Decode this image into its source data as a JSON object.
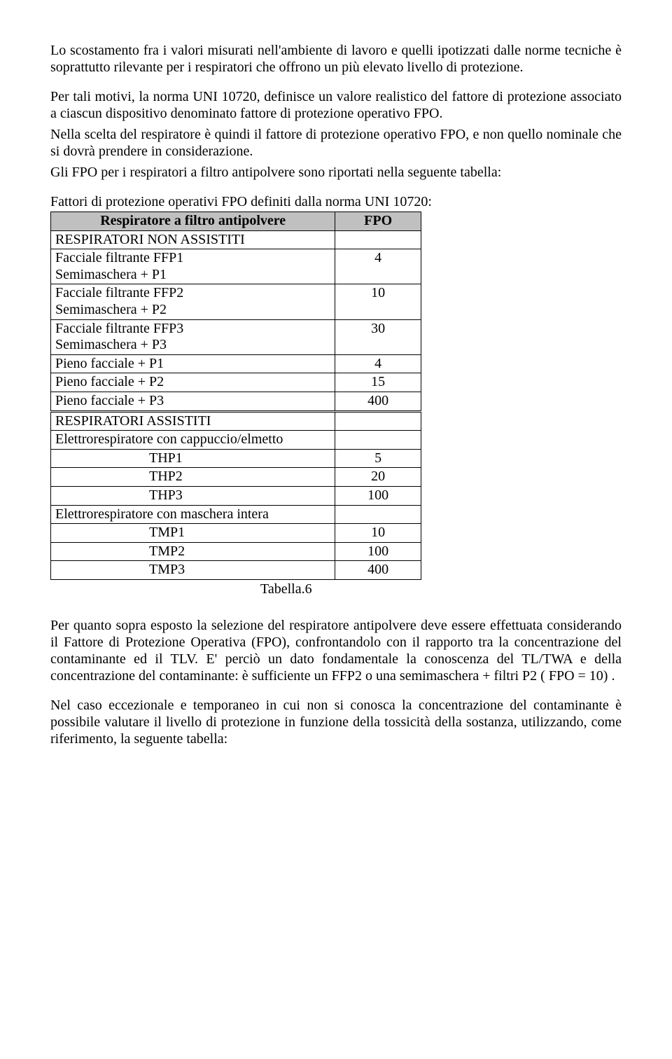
{
  "paras": {
    "p1": "Lo scostamento fra i valori misurati nell'ambiente di lavoro e quelli ipotizzati dalle norme tecniche è soprattutto rilevante per i respiratori che offrono un più elevato livello di protezione.",
    "p2": "Per tali motivi, la norma UNI 10720, definisce un valore realistico del fattore di protezione associato a ciascun dispositivo denominato fattore di protezione operativo FPO.",
    "p3": "Nella scelta del respiratore è quindi il fattore di protezione operativo FPO, e non quello nominale che si dovrà prendere in considerazione.",
    "p4": "Gli FPO per i respiratori a filtro antipolvere sono riportati nella seguente tabella:",
    "tableIntro": "Fattori di protezione operativi FPO definiti dalla norma UNI 10720:",
    "p5": "Per quanto sopra esposto la selezione del respiratore antipolvere deve essere effettuata considerando il Fattore di Protezione Operativa (FPO), confrontandolo con il rapporto tra la concentrazione del contaminante ed il TLV. E' perciò un dato fondamentale la conoscenza del TL/TWA e della concentrazione del contaminante: è sufficiente un FFP2  o una semimaschera + filtri P2 ( FPO = 10) .",
    "p6": "Nel caso eccezionale e temporaneo in cui non si conosca la concentrazione del contaminante è possibile valutare il livello di protezione in funzione della tossicità della sostanza, utilizzando, come riferimento, la seguente tabella:"
  },
  "table": {
    "header": {
      "col1": "Respiratore a filtro antipolvere",
      "col2": "FPO"
    },
    "rows": [
      {
        "col1": "RESPIRATORI NON ASSISTITI",
        "col2": "",
        "section": false
      },
      {
        "col1": "Facciale filtrante FFP1\nSemimaschera + P1",
        "col2": "4",
        "section": false
      },
      {
        "col1": "Facciale filtrante FFP2\nSemimaschera + P2",
        "col2": "10",
        "section": false
      },
      {
        "col1": "Facciale filtrante FFP3\nSemimaschera + P3",
        "col2": "30",
        "section": false
      },
      {
        "col1": "Pieno facciale + P1",
        "col2": "4",
        "section": false
      },
      {
        "col1": "Pieno facciale + P2",
        "col2": "15",
        "section": false
      },
      {
        "col1": "Pieno facciale + P3",
        "col2": "400",
        "section": false
      },
      {
        "col1": "RESPIRATORI ASSISTITI",
        "col2": "",
        "section": true
      },
      {
        "col1": "Elettrorespiratore con cappuccio/elmetto",
        "col2": "",
        "section": false
      },
      {
        "col1": "THP1",
        "col2": "5",
        "section": false,
        "indent": true
      },
      {
        "col1": "THP2",
        "col2": "20",
        "section": false,
        "indent": true
      },
      {
        "col1": "THP3",
        "col2": "100",
        "section": false,
        "indent": true
      },
      {
        "col1": "Elettrorespiratore con maschera intera",
        "col2": "",
        "section": false
      },
      {
        "col1": "TMP1",
        "col2": "10",
        "section": false,
        "indent": true
      },
      {
        "col1": "TMP2",
        "col2": "100",
        "section": false,
        "indent": true
      },
      {
        "col1": "TMP3",
        "col2": "400",
        "section": false,
        "indent": true
      }
    ],
    "caption": "Tabella.6"
  }
}
